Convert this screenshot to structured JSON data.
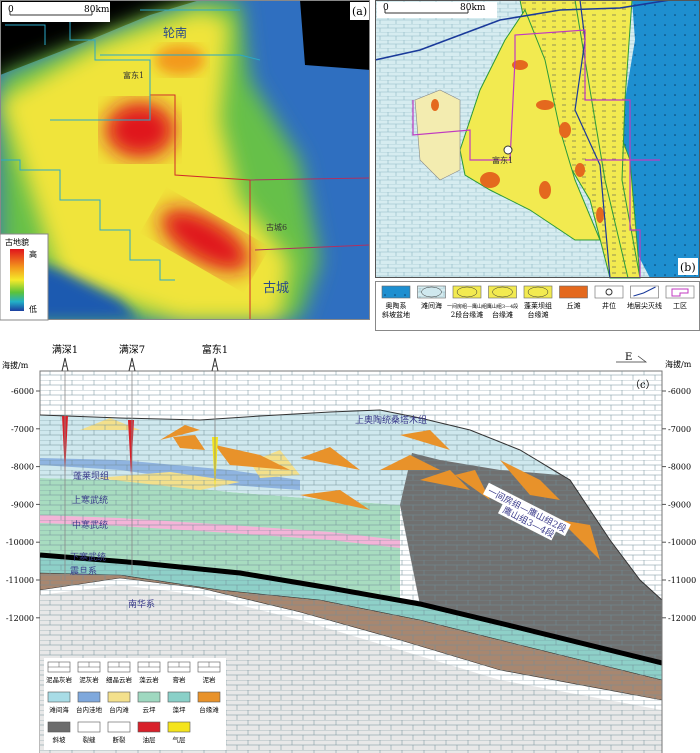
{
  "panel_a": {
    "label": "(a)",
    "scale": {
      "start": "0",
      "end": "80km"
    },
    "places": [
      "轮南",
      "富东1",
      "古城6",
      "古城"
    ],
    "legend": {
      "title": "古地貌",
      "high": "高",
      "low": "低"
    }
  },
  "panel_b": {
    "label": "(b)",
    "scale": {
      "start": "0",
      "end": "80km"
    },
    "well": "富东1",
    "legend": [
      {
        "label": "奥陶系\n斜坡盆地",
        "icon": "slope-basin-swatch",
        "color": "#1e8fd0"
      },
      {
        "label": "滩间海",
        "icon": "inter-shoal-sea-swatch",
        "color": "#cfe8ee"
      },
      {
        "label": "一间房组—鹰山组\n2段台缘滩",
        "icon": "yijianfang-shoal-swatch",
        "color": "#f2ea50"
      },
      {
        "label": "鹰山组3—4段\n台缘滩",
        "icon": "yingshan-shoal-swatch",
        "color": "#f2ea50"
      },
      {
        "label": "蓬莱坝组\n台缘滩",
        "icon": "penglaiba-shoal-swatch",
        "color": "#f2ea50"
      },
      {
        "label": "丘滩",
        "icon": "mound-shoal-swatch",
        "color": "#e4691e"
      },
      {
        "label": "井位",
        "icon": "well-location-icon"
      },
      {
        "label": "地层尖灭线",
        "icon": "pinchout-line-icon"
      },
      {
        "label": "工区",
        "icon": "work-area-icon"
      }
    ]
  },
  "panel_c": {
    "label": "（c）",
    "axis_title": "海拔/m",
    "ticks": [
      "-6000",
      "-7000",
      "-8000",
      "-9000",
      "-10000",
      "-11000",
      "-12000"
    ],
    "direction": "E",
    "wells": [
      "满深1",
      "满深7",
      "富东1"
    ],
    "units": [
      "上奥陶统桑塔木组",
      "蓬莱坝组",
      "上寒武统",
      "中寒武统",
      "下寒武统",
      "震旦系",
      "南华系",
      "一间房组—鹰山组2段",
      "鹰山组3—4段"
    ],
    "legend": [
      {
        "label": "泥晶灰岩",
        "color": "#ffffff"
      },
      {
        "label": "泥灰岩",
        "color": "#ffffff"
      },
      {
        "label": "细晶云岩",
        "color": "#ffffff"
      },
      {
        "label": "藻云岩",
        "color": "#ffffff"
      },
      {
        "label": "膏岩",
        "color": "#ffffff"
      },
      {
        "label": "泥岩",
        "color": "#ffffff"
      },
      {
        "label": "滩间海",
        "color": "#a8dce6"
      },
      {
        "label": "台内洼地",
        "color": "#7fa8dc"
      },
      {
        "label": "台内滩",
        "color": "#f3e08c"
      },
      {
        "label": "云坪",
        "color": "#9fd8c0"
      },
      {
        "label": "藻坪",
        "color": "#8ad0c8"
      },
      {
        "label": "台缘滩",
        "color": "#e8922a"
      },
      {
        "label": "斜坡",
        "color": "#6c6c6c"
      },
      {
        "label": "裂缝",
        "color": "#ffffff"
      },
      {
        "label": "断裂",
        "color": "#ffffff"
      },
      {
        "label": "油层",
        "color": "#d8202a"
      },
      {
        "label": "气层",
        "color": "#f4e41c"
      }
    ]
  }
}
